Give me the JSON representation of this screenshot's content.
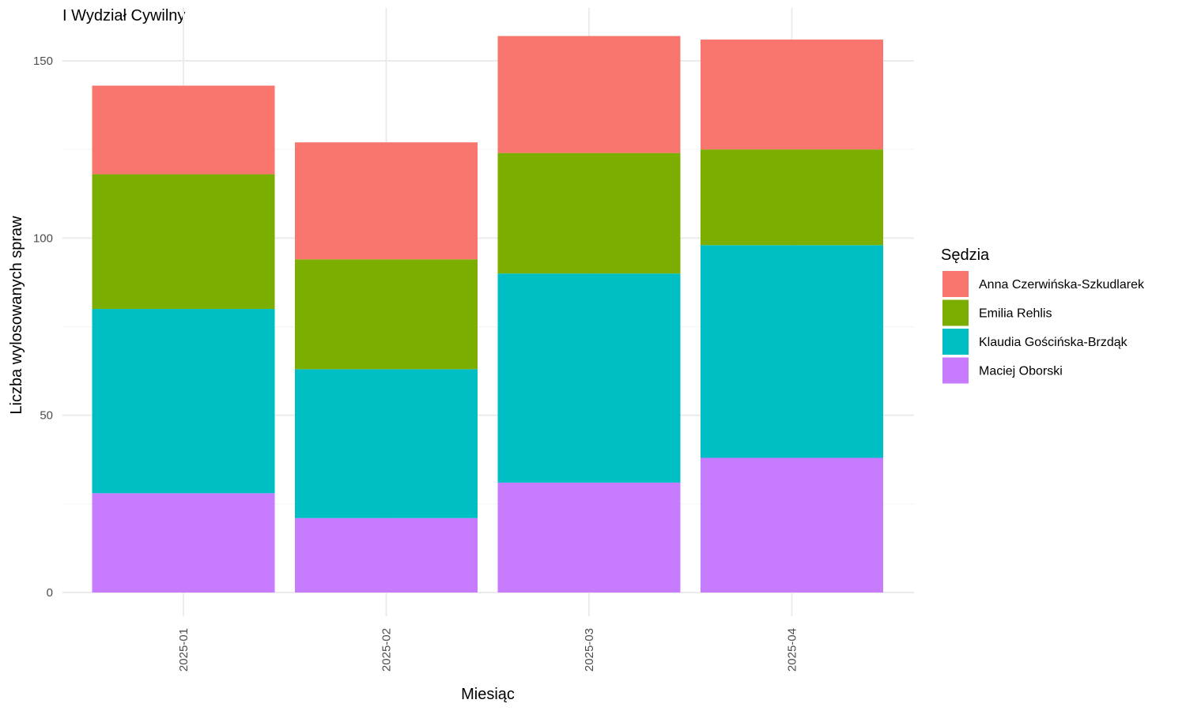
{
  "chart_data": {
    "type": "bar",
    "stacked": true,
    "title": "I Wydział Cywilny",
    "xlabel": "Miesiąc",
    "ylabel": "Liczba wylosowanych spraw",
    "categories": [
      "2025-01",
      "2025-02",
      "2025-03",
      "2025-04"
    ],
    "ylim": [
      0,
      160
    ],
    "yticks": [
      0,
      50,
      100,
      150
    ],
    "grid": true,
    "legend": {
      "title": "Sędzia",
      "position": "right"
    },
    "series": [
      {
        "name": "Maciej Oborski",
        "color": "#C77CFF",
        "values": [
          28,
          21,
          31,
          38
        ]
      },
      {
        "name": "Klaudia Gościńska-Brzdąk",
        "color": "#00BFC4",
        "values": [
          52,
          42,
          59,
          60
        ]
      },
      {
        "name": "Emilia Rehlis",
        "color": "#7CAE00",
        "values": [
          38,
          31,
          34,
          27
        ]
      },
      {
        "name": "Anna Czerwińska-Szkudlarek",
        "color": "#F8766D",
        "values": [
          25,
          33,
          33,
          31
        ]
      }
    ],
    "legend_order": [
      "Anna Czerwińska-Szkudlarek",
      "Emilia Rehlis",
      "Klaudia Gościńska-Brzdąk",
      "Maciej Oborski"
    ]
  }
}
